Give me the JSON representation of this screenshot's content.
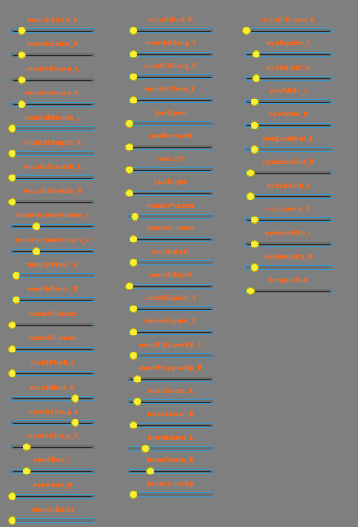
{
  "window": {
    "background": "#7f7f7f"
  },
  "colors": {
    "label": "#ff6a1a",
    "track_border": "#3a9ad0",
    "knob": "#f7ef3a"
  },
  "sliders": [
    {
      "col": 0,
      "label": "mouthSmile_L",
      "value": 0.12
    },
    {
      "col": 0,
      "label": "mouthSmile_R",
      "value": 0.12
    },
    {
      "col": 0,
      "label": "mouthFrown_L",
      "value": 0.12
    },
    {
      "col": 0,
      "label": "mouthFrown_R",
      "value": 0.12
    },
    {
      "col": 0,
      "label": "mouthDimple_L",
      "value": 0.0
    },
    {
      "col": 0,
      "label": "mouthDimple_R",
      "value": 0.0
    },
    {
      "col": 0,
      "label": "mouthStretch_L",
      "value": 0.0
    },
    {
      "col": 0,
      "label": "mouthStretch_R",
      "value": 0.0
    },
    {
      "col": 0,
      "label": "mouthLowerDown_L",
      "value": 0.3
    },
    {
      "col": 0,
      "label": "mouthLowerDown_R",
      "value": 0.3
    },
    {
      "col": 0,
      "label": "mouthPress_L",
      "value": 0.05
    },
    {
      "col": 0,
      "label": "mouthPress_R",
      "value": 0.05
    },
    {
      "col": 0,
      "label": "mouthPucker",
      "value": 0.0
    },
    {
      "col": 0,
      "label": "mouthFunnel",
      "value": 0.0
    },
    {
      "col": 0,
      "label": "mouthRoll_L",
      "value": 0.0
    },
    {
      "col": 0,
      "label": "mouthRoll_R",
      "value": 0.78
    },
    {
      "col": 0,
      "label": "mouthShrug_L",
      "value": 0.78
    },
    {
      "col": 0,
      "label": "mouthShrug_R",
      "value": 0.18
    },
    {
      "col": 0,
      "label": "eyeBlink_L",
      "value": 0.18
    },
    {
      "col": 0,
      "label": "eyeBlink_R",
      "value": 0.0
    },
    {
      "col": 0,
      "label": "mouthRight",
      "value": 0.0
    },
    {
      "col": 1,
      "label": "mouthRoll_R",
      "value": 0.05
    },
    {
      "col": 1,
      "label": "mouthShrug_L",
      "value": 0.05
    },
    {
      "col": 1,
      "label": "mouthShrug_R",
      "value": 0.05
    },
    {
      "col": 1,
      "label": "mouthClose_L",
      "value": 0.05
    },
    {
      "col": 1,
      "label": "jawOpen",
      "value": 0.0
    },
    {
      "col": 1,
      "label": "jawForward",
      "value": 0.0
    },
    {
      "col": 1,
      "label": "jawLeft",
      "value": 0.0
    },
    {
      "col": 1,
      "label": "jawRight",
      "value": 0.0
    },
    {
      "col": 1,
      "label": "mouthPucker",
      "value": 0.07
    },
    {
      "col": 1,
      "label": "mouthFunnel",
      "value": 0.05
    },
    {
      "col": 1,
      "label": "mouthLeft",
      "value": 0.05
    },
    {
      "col": 1,
      "label": "mouthRight",
      "value": 0.0
    },
    {
      "col": 1,
      "label": "cheekSquint_L",
      "value": 0.05
    },
    {
      "col": 1,
      "label": "cheekSquint_R",
      "value": 0.05
    },
    {
      "col": 1,
      "label": "mouthUpperUp_L",
      "value": 0.05
    },
    {
      "col": 1,
      "label": "mouthUpperUp_R",
      "value": 0.1
    },
    {
      "col": 1,
      "label": "noseSneer_L",
      "value": 0.1
    },
    {
      "col": 1,
      "label": "noseSneer_R",
      "value": 0.05
    },
    {
      "col": 1,
      "label": "browDown_L",
      "value": 0.2
    },
    {
      "col": 1,
      "label": "browDown_R",
      "value": 0.25
    },
    {
      "col": 1,
      "label": "browInnerUp",
      "value": 0.05
    },
    {
      "col": 2,
      "label": "mouthFrown_R",
      "value": 0.0
    },
    {
      "col": 2,
      "label": "eyeSquint_L",
      "value": 0.12
    },
    {
      "col": 2,
      "label": "eyeSquint_R",
      "value": 0.12
    },
    {
      "col": 2,
      "label": "eyeWide_L",
      "value": 0.1
    },
    {
      "col": 2,
      "label": "eyeWide_R",
      "value": 0.1
    },
    {
      "col": 2,
      "label": "eyeLookOut_L",
      "value": 0.1
    },
    {
      "col": 2,
      "label": "eyeLookOut_R",
      "value": 0.05
    },
    {
      "col": 2,
      "label": "eyeLookIn_L",
      "value": 0.05
    },
    {
      "col": 2,
      "label": "eyeLookIn_R",
      "value": 0.1
    },
    {
      "col": 2,
      "label": "eyeLookUp_L",
      "value": 0.1
    },
    {
      "col": 2,
      "label": "eyeLookUp_R",
      "value": 0.1
    },
    {
      "col": 2,
      "label": "tongueOut",
      "value": 0.05
    }
  ]
}
